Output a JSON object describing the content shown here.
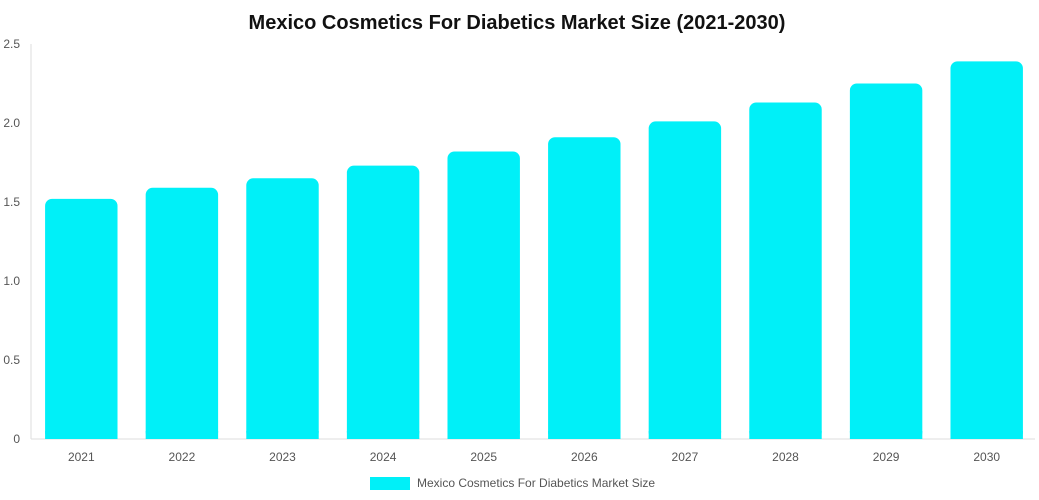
{
  "chart_data": {
    "type": "bar",
    "title": "Mexico Cosmetics For Diabetics Market Size (2021-2030)",
    "categories": [
      "2021",
      "2022",
      "2023",
      "2024",
      "2025",
      "2026",
      "2027",
      "2028",
      "2029",
      "2030"
    ],
    "series": [
      {
        "name": "Mexico Cosmetics For Diabetics Market Size",
        "values": [
          1.52,
          1.59,
          1.65,
          1.73,
          1.82,
          1.91,
          2.01,
          2.13,
          2.25,
          2.39
        ],
        "color": "#00F0F8"
      }
    ],
    "y_ticks": [
      "0",
      "0.5",
      "1.0",
      "1.5",
      "2.0",
      "2.5"
    ],
    "ylim": [
      0,
      2.5
    ],
    "grid": false,
    "legend_position": "bottom"
  }
}
